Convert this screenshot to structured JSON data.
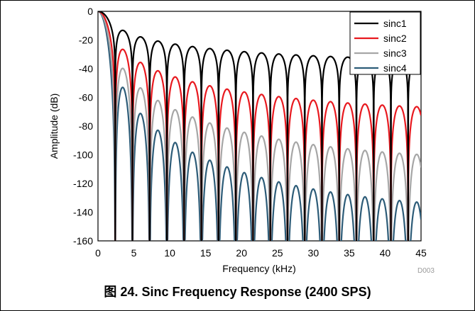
{
  "chart_data": {
    "type": "line",
    "xlabel": "Frequency (kHz)",
    "ylabel": "Amplitude (dB)",
    "xlim": [
      0,
      45
    ],
    "ylim": [
      -160,
      0
    ],
    "x_ticks": [
      "0",
      "5",
      "10",
      "15",
      "20",
      "25",
      "30",
      "35",
      "40",
      "45"
    ],
    "y_ticks": [
      "0",
      "-20",
      "-40",
      "-60",
      "-80",
      "-100",
      "-120",
      "-140",
      "-160"
    ],
    "grid": false,
    "legend_position": "top-right",
    "model": {
      "null_spacing_khz": 2.4,
      "decimation": 50,
      "floor_db": -160
    },
    "series": [
      {
        "name": "sinc1",
        "order": 1,
        "color": "#000000"
      },
      {
        "name": "sinc2",
        "order": 2,
        "color": "#e8191f"
      },
      {
        "name": "sinc3",
        "order": 3,
        "color": "#a6a6a6"
      },
      {
        "name": "sinc4",
        "order": 4,
        "color": "#2d5c78"
      }
    ]
  },
  "doc_code": "D003",
  "caption": "图 24. Sinc Frequency Response (2400 SPS)"
}
